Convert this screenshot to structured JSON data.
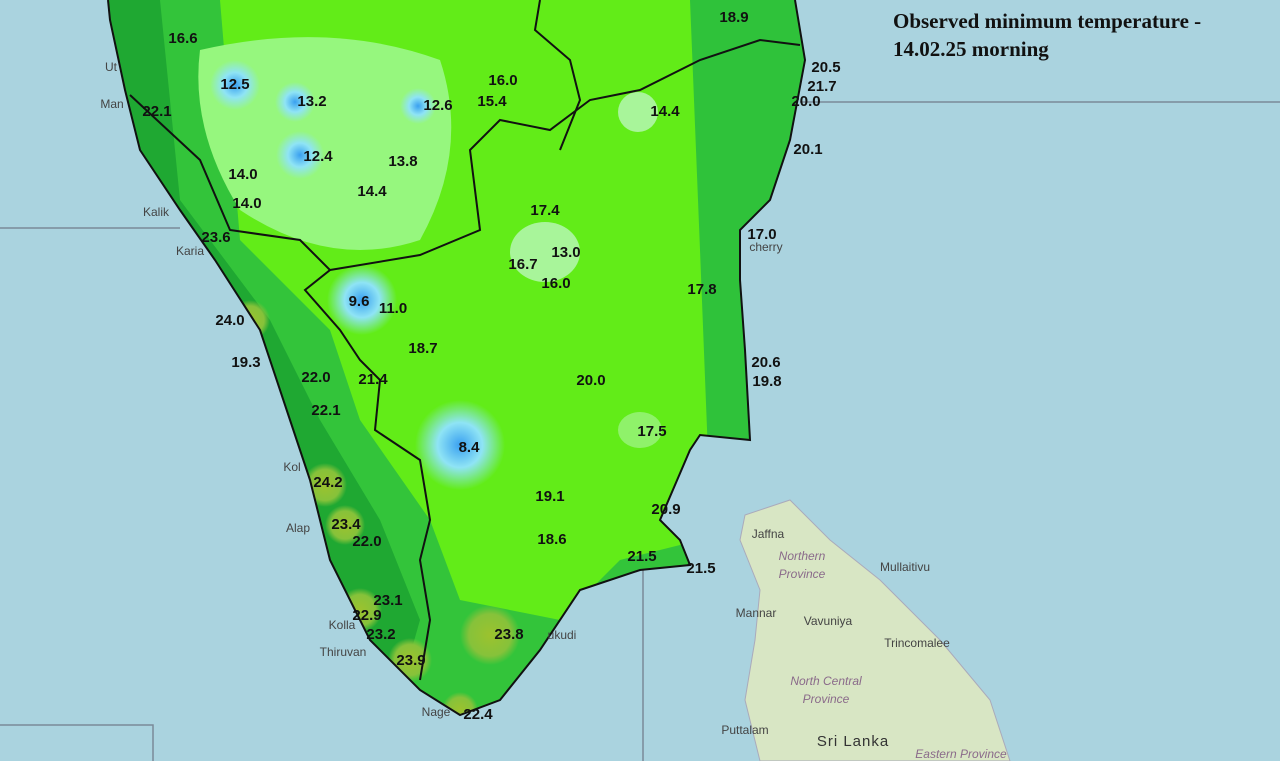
{
  "title": [
    "Observed minimum temperature -",
    "14.02.25 morning"
  ],
  "temperatures": [
    "16.6",
    "18.9",
    "20.5",
    "21.7",
    "20.0",
    "12.5",
    "13.2",
    "12.6",
    "16.0",
    "15.4",
    "14.4",
    "22.1",
    "20.1",
    "12.4",
    "13.8",
    "14.0",
    "14.4",
    "14.0",
    "17.4",
    "23.6",
    "17.0",
    "13.0",
    "16.7",
    "16.0",
    "17.8",
    "9.6",
    "11.0",
    "24.0",
    "18.7",
    "19.3",
    "20.6",
    "22.0",
    "21.4",
    "20.0",
    "19.8",
    "22.1",
    "17.5",
    "8.4",
    "24.2",
    "19.1",
    "20.9",
    "23.4",
    "22.0",
    "18.6",
    "21.5",
    "21.5",
    "23.1",
    "22.9",
    "23.8",
    "23.2",
    "23.9",
    "22.4"
  ],
  "places": [
    "Ut",
    "Man",
    "Kalik",
    "Karia",
    "Kol",
    "Alap",
    "Kolla",
    "Thiruvan",
    "Nage",
    "ukudi",
    "cherry",
    "Jaffna",
    "Mullaitivu",
    "Mannar",
    "Vavuniya",
    "Trincomalee",
    "Puttalam"
  ],
  "regions": [
    "Northern Province",
    "North Central Province",
    "Eastern Province"
  ],
  "country": "Sri Lanka"
}
